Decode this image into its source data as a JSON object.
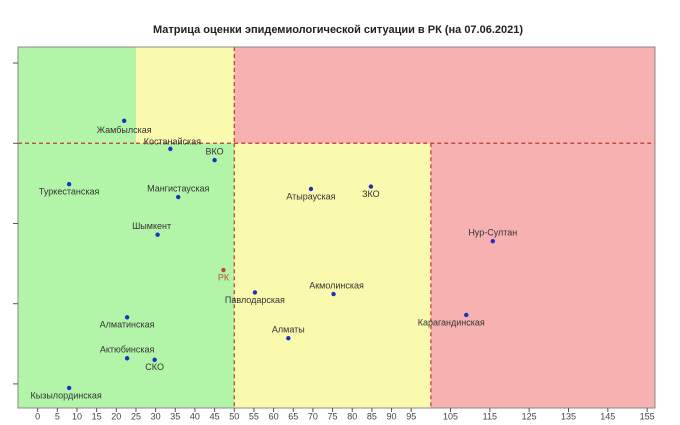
{
  "chart_data": {
    "type": "scatter",
    "title": "Матрица оценки эпидемиологической ситуации в РК (на 07.06.2021)",
    "points": [
      "Жамбылская",
      "Костанайская",
      "ВКО",
      "Туркестанская",
      "Мангистауская",
      "Шымкент",
      "РК",
      "Атырауская",
      "ЗКО",
      "Нур-Султан",
      "Павлодарская",
      "Акмолинская",
      "Алматинская",
      "Карагандинская",
      "Алматы",
      "Актюбинская",
      "СКО",
      "Кызылординская"
    ],
    "x": [
      22,
      33.75,
      45,
      8,
      35.75,
      30.5,
      47.25,
      69.5,
      84.75,
      115.75,
      55.25,
      75.25,
      22.75,
      109,
      63.75,
      22.75,
      29.75,
      8
    ],
    "y": [
      1.028,
      0.993,
      0.979,
      0.949,
      0.933,
      0.886,
      0.842,
      0.943,
      0.946,
      0.878,
      0.814,
      0.812,
      0.783,
      0.786,
      0.757,
      0.732,
      0.73,
      0.695
    ],
    "colors": [
      "#1f2fbf",
      "#1f2fbf",
      "#1f2fbf",
      "#1f2fbf",
      "#1f2fbf",
      "#1f2fbf",
      "#b5502a",
      "#1f2fbf",
      "#1f2fbf",
      "#1f2fbf",
      "#1f2fbf",
      "#1f2fbf",
      "#1f2fbf",
      "#1f2fbf",
      "#1f2fbf",
      "#1f2fbf",
      "#1f2fbf",
      "#1f2fbf"
    ],
    "label_colors": [
      "#333333",
      "#333333",
      "#333333",
      "#333333",
      "#333333",
      "#333333",
      "#c0502a",
      "#333333",
      "#333333",
      "#333333",
      "#333333",
      "#333333",
      "#333333",
      "#333333",
      "#333333",
      "#333333",
      "#333333",
      "#333333"
    ],
    "zones": [
      {
        "xlim": [
          -5,
          25
        ],
        "ylim": [
          1,
          1.12
        ],
        "color": "#b3f5a8",
        "dashed_left": false
      },
      {
        "xlim": [
          25,
          50
        ],
        "ylim": [
          1,
          1.12
        ],
        "color": "#fafaae",
        "dashed_left": false
      },
      {
        "xlim": [
          50,
          157
        ],
        "ylim": [
          1,
          1.12
        ],
        "color": "#f7b1b1",
        "dashed_left": true
      },
      {
        "xlim": [
          -5,
          50
        ],
        "ylim": [
          0.67,
          1
        ],
        "color": "#b3f5a8",
        "dashed_left": false
      },
      {
        "xlim": [
          50,
          100
        ],
        "ylim": [
          0.67,
          1
        ],
        "color": "#fafaae",
        "dashed_left": true
      },
      {
        "xlim": [
          100,
          157
        ],
        "ylim": [
          0.67,
          1
        ],
        "color": "#f7b1b1",
        "dashed_left": true
      }
    ],
    "xlim": [
      -5,
      157
    ],
    "ylim": [
      0.67,
      1.12
    ],
    "xticks": [
      0,
      5,
      10,
      15,
      20,
      25,
      30,
      35,
      40,
      45,
      50,
      55,
      60,
      65,
      70,
      75,
      80,
      85,
      90,
      95,
      105,
      115,
      125,
      135,
      145,
      155
    ],
    "yticks": [
      0.7,
      0.8,
      0.9,
      1.0,
      1.1
    ]
  }
}
